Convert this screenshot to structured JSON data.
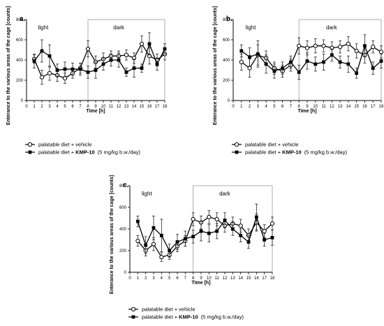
{
  "ylabel": "Enterance to the various areas of the cage [counts]",
  "legend": {
    "vehicle": "palatable diet + vehicle",
    "kmp_prefix": "palatable diet + ",
    "kmp_drug": "KMP-10",
    "kmp_dose": "(5 mg/kg b.w./day)"
  },
  "chart_data": [
    {
      "type": "line",
      "panel_label": "a.",
      "xlabel": "Time [h]",
      "region_light": "light",
      "region_dark": "dark",
      "dark_start": 8,
      "x": [
        1,
        2,
        3,
        4,
        5,
        6,
        7,
        8,
        9,
        10,
        11,
        12,
        13,
        14,
        15,
        16,
        17,
        18
      ],
      "xlim": [
        0,
        18
      ],
      "ylim": [
        0,
        800
      ],
      "yticks": [
        0,
        200,
        400,
        600,
        800
      ],
      "series": [
        {
          "key": "vehicle",
          "marker": "open-circle",
          "values": [
            410,
            230,
            270,
            250,
            220,
            270,
            320,
            510,
            380,
            410,
            440,
            440,
            450,
            420,
            560,
            440,
            400,
            460
          ],
          "errors": [
            40,
            70,
            70,
            60,
            50,
            50,
            50,
            80,
            60,
            60,
            50,
            50,
            50,
            50,
            80,
            80,
            60,
            60
          ]
        },
        {
          "key": "kmp",
          "marker": "filled-square",
          "values": [
            390,
            490,
            440,
            300,
            310,
            310,
            310,
            280,
            300,
            360,
            400,
            400,
            280,
            320,
            320,
            560,
            360,
            510
          ],
          "errors": [
            70,
            110,
            110,
            60,
            70,
            60,
            60,
            60,
            80,
            60,
            60,
            70,
            40,
            90,
            40,
            110,
            60,
            50
          ]
        }
      ]
    },
    {
      "type": "line",
      "panel_label": "b.",
      "xlabel": "Time [h]",
      "region_light": "light",
      "region_dark": "dark",
      "dark_start": 8,
      "x": [
        1,
        2,
        3,
        4,
        5,
        6,
        7,
        8,
        9,
        10,
        11,
        12,
        13,
        14,
        15,
        16,
        17,
        18
      ],
      "xlim": [
        0,
        18
      ],
      "ylim": [
        0,
        800
      ],
      "yticks": [
        0,
        200,
        400,
        600,
        800
      ],
      "series": [
        {
          "key": "vehicle",
          "marker": "open-circle",
          "values": [
            380,
            320,
            450,
            420,
            320,
            290,
            350,
            540,
            520,
            540,
            540,
            520,
            530,
            560,
            490,
            450,
            530,
            480
          ],
          "errors": [
            80,
            90,
            100,
            70,
            60,
            60,
            60,
            80,
            70,
            70,
            60,
            60,
            60,
            70,
            70,
            80,
            60,
            60
          ]
        },
        {
          "key": "kmp",
          "marker": "filled-square",
          "values": [
            490,
            430,
            460,
            360,
            290,
            320,
            380,
            280,
            390,
            360,
            380,
            450,
            380,
            360,
            270,
            540,
            320,
            390
          ],
          "errors": [
            60,
            90,
            130,
            90,
            70,
            60,
            60,
            70,
            80,
            70,
            80,
            60,
            60,
            80,
            50,
            110,
            60,
            70
          ]
        }
      ]
    },
    {
      "type": "line",
      "panel_label": "c.",
      "xlabel": "Time [h]",
      "region_light": "light",
      "region_dark": "dark",
      "dark_start": 8,
      "x": [
        1,
        2,
        3,
        4,
        5,
        6,
        7,
        8,
        9,
        10,
        11,
        12,
        13,
        14,
        15,
        16,
        17,
        18
      ],
      "xlim": [
        0,
        18
      ],
      "ylim": [
        0,
        800
      ],
      "yticks": [
        0,
        200,
        400,
        600,
        800
      ],
      "series": [
        {
          "key": "vehicle",
          "marker": "open-circle",
          "values": [
            290,
            200,
            260,
            140,
            160,
            240,
            290,
            490,
            460,
            510,
            490,
            430,
            450,
            430,
            340,
            460,
            380,
            450
          ],
          "errors": [
            50,
            50,
            60,
            40,
            40,
            50,
            50,
            60,
            60,
            60,
            60,
            60,
            60,
            60,
            60,
            80,
            60,
            60
          ]
        },
        {
          "key": "kmp",
          "marker": "filled-square",
          "values": [
            470,
            250,
            410,
            340,
            200,
            280,
            310,
            330,
            380,
            360,
            380,
            480,
            400,
            340,
            280,
            510,
            300,
            320
          ],
          "errors": [
            50,
            80,
            110,
            150,
            60,
            70,
            70,
            60,
            90,
            80,
            70,
            70,
            60,
            60,
            60,
            120,
            60,
            70
          ]
        }
      ]
    }
  ]
}
